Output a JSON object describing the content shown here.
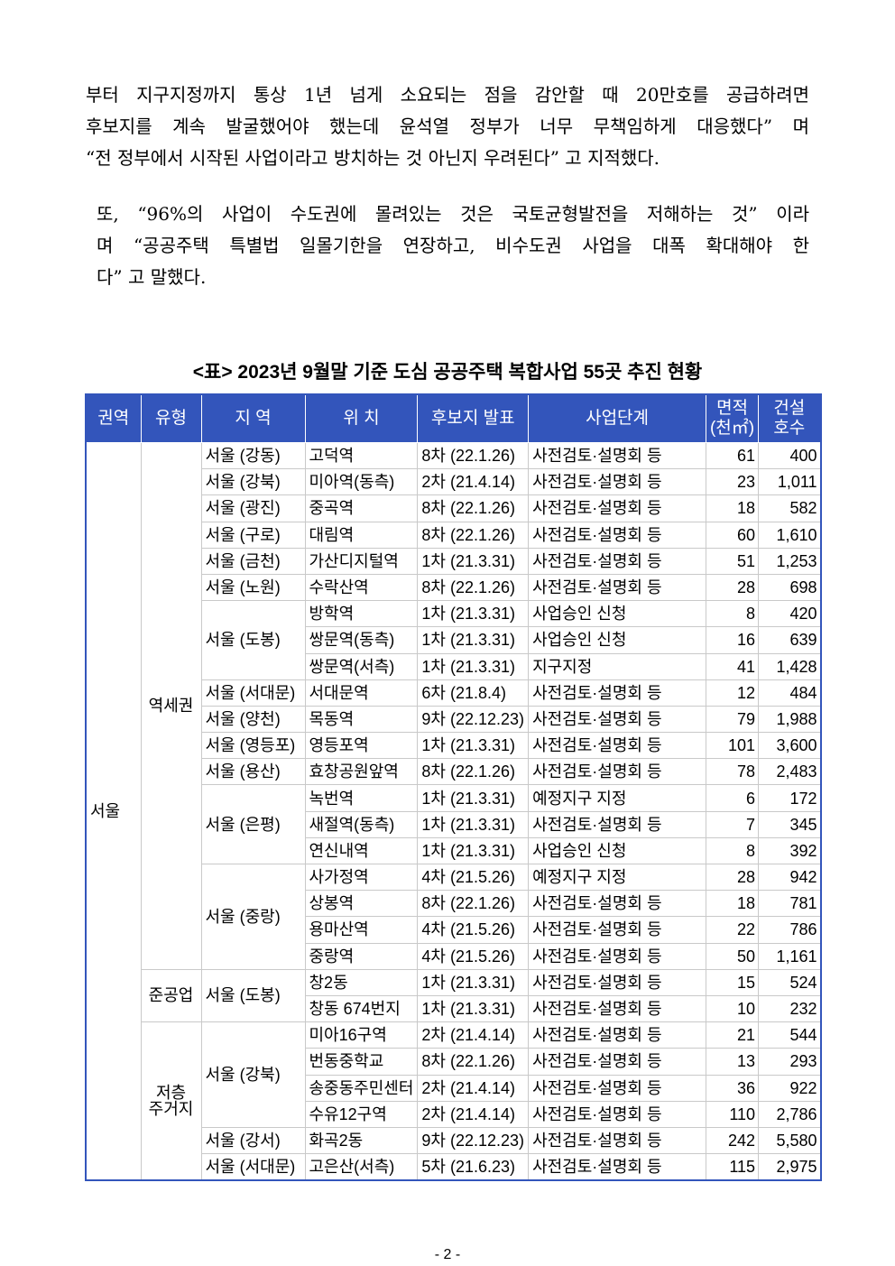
{
  "body": {
    "paragraph1": [
      "부터 지구지정까지 통상 1년 넘게 소요되는 점을 감안할 때 20만호를 공급하려면",
      "후보지를 계속 발굴했어야 했는데 윤석열 정부가 너무 무책임하게 대응했다” 며",
      "“전 정부에서 시작된 사업이라고 방치하는 것 아닌지 우려된다” 고 지적했다."
    ],
    "paragraph2": [
      "또, “96%의 사업이 수도권에 몰려있는 것은 국토균형발전을 저해하는 것” 이라",
      "며 “공공주택 특별법 일몰기한을 연장하고, 비수도권 사업을 대폭 확대해야 한",
      "다” 고 말했다."
    ]
  },
  "table": {
    "caption": "<표> 2023년 9월말 기준 도심 공공주택 복합사업 55곳 추진 현황",
    "header_color": "#3355bb",
    "headers": [
      "권역",
      "유형",
      "지 역",
      "위 치",
      "후보지 발표",
      "사업단계",
      "면적\n(천㎡)",
      "건설\n호수"
    ],
    "rows": [
      [
        "서울",
        "역세권",
        "서울 (강동)",
        "고덕역",
        "8차 (22.1.26)",
        "사전검토·설명회 등",
        "61",
        "400"
      ],
      [
        "서울",
        "역세권",
        "서울 (강북)",
        "미아역(동측)",
        "2차 (21.4.14)",
        "사전검토·설명회 등",
        "23",
        "1,011"
      ],
      [
        "서울",
        "역세권",
        "서울 (광진)",
        "중곡역",
        "8차 (22.1.26)",
        "사전검토·설명회 등",
        "18",
        "582"
      ],
      [
        "서울",
        "역세권",
        "서울 (구로)",
        "대림역",
        "8차 (22.1.26)",
        "사전검토·설명회 등",
        "60",
        "1,610"
      ],
      [
        "서울",
        "역세권",
        "서울 (금천)",
        "가산디지털역",
        "1차 (21.3.31)",
        "사전검토·설명회 등",
        "51",
        "1,253"
      ],
      [
        "서울",
        "역세권",
        "서울 (노원)",
        "수락산역",
        "8차 (22.1.26)",
        "사전검토·설명회 등",
        "28",
        "698"
      ],
      [
        "서울",
        "역세권",
        "서울 (도봉)",
        "방학역",
        "1차 (21.3.31)",
        "사업승인 신청",
        "8",
        "420"
      ],
      [
        "서울",
        "역세권",
        "서울 (도봉)",
        "쌍문역(동측)",
        "1차 (21.3.31)",
        "사업승인 신청",
        "16",
        "639"
      ],
      [
        "서울",
        "역세권",
        "서울 (도봉)",
        "쌍문역(서측)",
        "1차 (21.3.31)",
        "지구지정",
        "41",
        "1,428"
      ],
      [
        "서울",
        "역세권",
        "서울 (서대문)",
        "서대문역",
        "6차 (21.8.4)",
        "사전검토·설명회 등",
        "12",
        "484"
      ],
      [
        "서울",
        "역세권",
        "서울 (양천)",
        "목동역",
        "9차 (22.12.23)",
        "사전검토·설명회 등",
        "79",
        "1,988"
      ],
      [
        "서울",
        "역세권",
        "서울 (영등포)",
        "영등포역",
        "1차 (21.3.31)",
        "사전검토·설명회 등",
        "101",
        "3,600"
      ],
      [
        "서울",
        "역세권",
        "서울 (용산)",
        "효창공원앞역",
        "8차 (22.1.26)",
        "사전검토·설명회 등",
        "78",
        "2,483"
      ],
      [
        "서울",
        "역세권",
        "서울 (은평)",
        "녹번역",
        "1차 (21.3.31)",
        "예정지구 지정",
        "6",
        "172"
      ],
      [
        "서울",
        "역세권",
        "서울 (은평)",
        "새절역(동측)",
        "1차 (21.3.31)",
        "사전검토·설명회 등",
        "7",
        "345"
      ],
      [
        "서울",
        "역세권",
        "서울 (은평)",
        "연신내역",
        "1차 (21.3.31)",
        "사업승인 신청",
        "8",
        "392"
      ],
      [
        "서울",
        "역세권",
        "서울 (중랑)",
        "사가정역",
        "4차 (21.5.26)",
        "예정지구 지정",
        "28",
        "942"
      ],
      [
        "서울",
        "역세권",
        "서울 (중랑)",
        "상봉역",
        "8차 (22.1.26)",
        "사전검토·설명회 등",
        "18",
        "781"
      ],
      [
        "서울",
        "역세권",
        "서울 (중랑)",
        "용마산역",
        "4차 (21.5.26)",
        "사전검토·설명회 등",
        "22",
        "786"
      ],
      [
        "서울",
        "역세권",
        "서울 (중랑)",
        "중랑역",
        "4차 (21.5.26)",
        "사전검토·설명회 등",
        "50",
        "1,161"
      ],
      [
        "서울",
        "준공업",
        "서울 (도봉)",
        "창2동",
        "1차 (21.3.31)",
        "사전검토·설명회 등",
        "15",
        "524"
      ],
      [
        "서울",
        "준공업",
        "서울 (도봉)",
        "창동 674번지",
        "1차 (21.3.31)",
        "사전검토·설명회 등",
        "10",
        "232"
      ],
      [
        "서울",
        "저층\n주거지",
        "서울 (강북)",
        "미아16구역",
        "2차 (21.4.14)",
        "사전검토·설명회 등",
        "21",
        "544"
      ],
      [
        "서울",
        "저층\n주거지",
        "서울 (강북)",
        "번동중학교",
        "8차 (22.1.26)",
        "사전검토·설명회 등",
        "13",
        "293"
      ],
      [
        "서울",
        "저층\n주거지",
        "서울 (강북)",
        "송중동주민센터",
        "2차 (21.4.14)",
        "사전검토·설명회 등",
        "36",
        "922"
      ],
      [
        "서울",
        "저층\n주거지",
        "서울 (강북)",
        "수유12구역",
        "2차 (21.4.14)",
        "사전검토·설명회 등",
        "110",
        "2,786"
      ],
      [
        "서울",
        "저층\n주거지",
        "서울 (강서)",
        "화곡2동",
        "9차 (22.12.23)",
        "사전검토·설명회 등",
        "242",
        "5,580"
      ],
      [
        "서울",
        "저층\n주거지",
        "서울 (서대문)",
        "고은산(서측)",
        "5차 (21.6.23)",
        "사전검토·설명회 등",
        "115",
        "2,975"
      ]
    ]
  },
  "footer": {
    "page_number": "- 2 -"
  }
}
